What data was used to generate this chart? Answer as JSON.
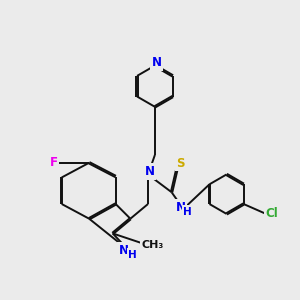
{
  "background_color": "#ebebeb",
  "atom_colors": {
    "N": "#0000ee",
    "S": "#ccaa00",
    "F": "#ee00ee",
    "Cl": "#33aa33",
    "C": "#111111",
    "H": "#0000ee"
  },
  "bond_color": "#111111",
  "bond_width": 1.4,
  "figsize": [
    3.0,
    3.0
  ],
  "dpi": 100
}
